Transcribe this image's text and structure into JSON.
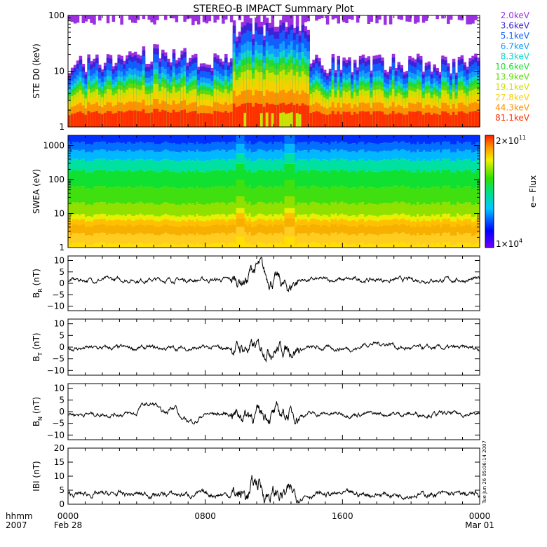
{
  "chart_data": [
    {
      "type": "area",
      "id": "ste",
      "title": "STEREO-B IMPACT Summary Plot",
      "ylabel": "STE D0 (keV)",
      "yscale": "log",
      "ylim": [
        1,
        100
      ],
      "yticks": [
        "1",
        "10",
        "100"
      ],
      "legend_position": "right",
      "series": [
        {
          "name": "2.0keV",
          "color": "#9a30e0"
        },
        {
          "name": "3.6keV",
          "color": "#3a22d8"
        },
        {
          "name": "5.1keV",
          "color": "#1060ff"
        },
        {
          "name": "6.7keV",
          "color": "#10a0ff"
        },
        {
          "name": "8.3keV",
          "color": "#10d8c8"
        },
        {
          "name": "10.6keV",
          "color": "#20dc30"
        },
        {
          "name": "13.9keV",
          "color": "#60d810"
        },
        {
          "name": "19.1keV",
          "color": "#d0e000"
        },
        {
          "name": "27.8keV",
          "color": "#f8d000"
        },
        {
          "name": "44.3keV",
          "color": "#ff9000"
        },
        {
          "name": "81.1keV",
          "color": "#ff3000"
        }
      ]
    },
    {
      "type": "heatmap",
      "id": "swea",
      "ylabel": "SWEA (eV)",
      "yscale": "log",
      "ylim": [
        1,
        2000
      ],
      "yticks": [
        "1",
        "10",
        "100",
        "1000"
      ],
      "colorbar": {
        "label": "e− Flux",
        "max_label": "2×10",
        "max_exp": "11",
        "min_label": "1×10",
        "min_exp": "4"
      }
    },
    {
      "type": "line",
      "id": "br",
      "ylabel_main": "B",
      "ylabel_sub": "R",
      "ylabel_unit": "(nT)",
      "ylim": [
        -12,
        12
      ],
      "yticks": [
        "−10",
        "−5",
        "0",
        "5",
        "10"
      ],
      "ytick_values": [
        -10,
        -5,
        0,
        5,
        10
      ],
      "baseline": 1.5,
      "color": "#000000"
    },
    {
      "type": "line",
      "id": "bt",
      "ylabel_main": "B",
      "ylabel_sub": "T",
      "ylabel_unit": "(nT)",
      "ylim": [
        -12,
        12
      ],
      "yticks": [
        "−10",
        "−5",
        "0",
        "5",
        "10"
      ],
      "ytick_values": [
        -10,
        -5,
        0,
        5,
        10
      ],
      "baseline": -0.5,
      "color": "#000000"
    },
    {
      "type": "line",
      "id": "bn",
      "ylabel_main": "B",
      "ylabel_sub": "N",
      "ylabel_unit": "(nT)",
      "ylim": [
        -12,
        12
      ],
      "yticks": [
        "−10",
        "−5",
        "0",
        "5",
        "10"
      ],
      "ytick_values": [
        -10,
        -5,
        0,
        5,
        10
      ],
      "baseline": -1,
      "color": "#000000"
    },
    {
      "type": "line",
      "id": "bmag",
      "ylabel_main": "IBI",
      "ylabel_sub": "",
      "ylabel_unit": "(nT)",
      "ylim": [
        0,
        20
      ],
      "yticks": [
        "0",
        "5",
        "10",
        "15",
        "20"
      ],
      "ytick_values": [
        0,
        5,
        10,
        15,
        20
      ],
      "baseline": 3.5,
      "color": "#000000"
    }
  ],
  "x_axis": {
    "left_label_1": "hhmm",
    "left_label_2": "2007",
    "ticks": [
      {
        "hour": 0,
        "time": "0000",
        "date": "Feb 28"
      },
      {
        "hour": 8,
        "time": "0800",
        "date": ""
      },
      {
        "hour": 16,
        "time": "1600",
        "date": ""
      },
      {
        "hour": 24,
        "time": "0000",
        "date": "Mar 01"
      }
    ],
    "xlim_hours": [
      0,
      24
    ]
  },
  "timestamp": "Tue Jun 26 05:06:14 2007"
}
